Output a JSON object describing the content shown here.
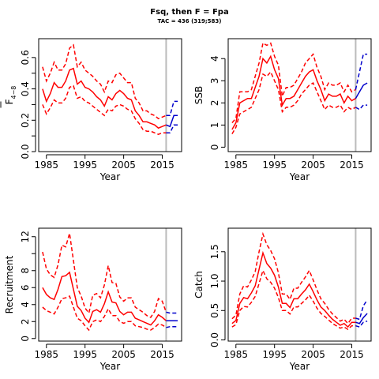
{
  "title": "Fsq, then F = Fpa",
  "subtitle": "TAC = 436 (319;583)",
  "colors": {
    "historical": "#ff0000",
    "projection": "#0000cc",
    "marker": "#bbbbbb"
  },
  "chart_data": [
    {
      "type": "line",
      "ylabel_main": "F",
      "ylabel_sub": "4−8",
      "xlabel": "Year",
      "xlim": [
        1983,
        2020
      ],
      "ylim": [
        0,
        0.72
      ],
      "xticks": [
        1985,
        1995,
        2005,
        2015
      ],
      "yticks": [
        0.0,
        0.1,
        0.2,
        0.3,
        0.4,
        0.5,
        0.6
      ],
      "yticklabels": [
        "0.0",
        "",
        "0.2",
        "",
        "0.4",
        "",
        "0.6"
      ],
      "marker_year": 2016,
      "x": [
        1984,
        1985,
        1986,
        1987,
        1988,
        1989,
        1990,
        1991,
        1992,
        1993,
        1994,
        1995,
        1996,
        1997,
        1998,
        1999,
        2000,
        2001,
        2002,
        2003,
        2004,
        2005,
        2006,
        2007,
        2008,
        2009,
        2010,
        2011,
        2012,
        2013,
        2014,
        2015,
        2016
      ],
      "series": [
        {
          "role": "estimate",
          "values": [
            0.4,
            0.32,
            0.37,
            0.44,
            0.41,
            0.41,
            0.45,
            0.52,
            0.53,
            0.43,
            0.45,
            0.41,
            0.4,
            0.38,
            0.35,
            0.33,
            0.29,
            0.35,
            0.33,
            0.37,
            0.39,
            0.37,
            0.34,
            0.33,
            0.26,
            0.23,
            0.19,
            0.19,
            0.18,
            0.17,
            0.15,
            0.16,
            0.17
          ]
        },
        {
          "role": "upper",
          "values": [
            0.54,
            0.45,
            0.5,
            0.57,
            0.52,
            0.52,
            0.56,
            0.66,
            0.68,
            0.54,
            0.57,
            0.52,
            0.5,
            0.48,
            0.45,
            0.43,
            0.38,
            0.45,
            0.44,
            0.49,
            0.5,
            0.47,
            0.44,
            0.44,
            0.34,
            0.31,
            0.26,
            0.26,
            0.24,
            0.23,
            0.21,
            0.22,
            0.23
          ]
        },
        {
          "role": "lower",
          "values": [
            0.3,
            0.24,
            0.28,
            0.33,
            0.31,
            0.31,
            0.34,
            0.41,
            0.42,
            0.34,
            0.35,
            0.32,
            0.31,
            0.29,
            0.27,
            0.25,
            0.23,
            0.27,
            0.26,
            0.29,
            0.3,
            0.29,
            0.27,
            0.26,
            0.21,
            0.18,
            0.14,
            0.13,
            0.13,
            0.12,
            0.11,
            0.12,
            0.12
          ]
        }
      ],
      "projection": {
        "x": [
          2016,
          2017,
          2018,
          2019
        ],
        "estimate": [
          0.17,
          0.16,
          0.23,
          0.23
        ],
        "upper": [
          0.23,
          0.23,
          0.32,
          0.32
        ],
        "lower": [
          0.12,
          0.12,
          0.17,
          0.17
        ]
      }
    },
    {
      "type": "line",
      "ylabel_main": "SSB",
      "ylabel_sub": "",
      "xlabel": "Year",
      "xlim": [
        1983,
        2020
      ],
      "ylim": [
        -0.2,
        4.9
      ],
      "xticks": [
        1985,
        1995,
        2005,
        2015
      ],
      "yticks": [
        0,
        1,
        2,
        3,
        4
      ],
      "yticklabels": [
        "0",
        "1",
        "2",
        "3",
        "4"
      ],
      "marker_year": 2016,
      "x": [
        1984,
        1985,
        1986,
        1987,
        1988,
        1989,
        1990,
        1991,
        1992,
        1993,
        1994,
        1995,
        1996,
        1997,
        1998,
        1999,
        2000,
        2001,
        2002,
        2003,
        2004,
        2005,
        2006,
        2007,
        2008,
        2009,
        2010,
        2011,
        2012,
        2013,
        2014,
        2015,
        2016
      ],
      "series": [
        {
          "role": "estimate",
          "values": [
            0.8,
            1.1,
            2.0,
            2.1,
            2.2,
            2.2,
            2.7,
            3.2,
            4.0,
            3.8,
            4.1,
            3.5,
            3.1,
            1.9,
            2.2,
            2.2,
            2.3,
            2.6,
            2.9,
            3.2,
            3.4,
            3.5,
            3.0,
            2.6,
            2.1,
            2.4,
            2.3,
            2.3,
            2.4,
            2.0,
            2.3,
            2.1,
            2.2
          ]
        },
        {
          "role": "upper",
          "values": [
            1.1,
            1.3,
            2.5,
            2.5,
            2.5,
            2.6,
            3.2,
            3.8,
            4.7,
            4.6,
            4.7,
            4.1,
            3.7,
            2.3,
            2.7,
            2.7,
            2.8,
            3.1,
            3.4,
            3.8,
            4.0,
            4.2,
            3.6,
            3.2,
            2.6,
            2.9,
            2.8,
            2.8,
            2.9,
            2.5,
            2.8,
            2.5,
            2.6
          ]
        },
        {
          "role": "lower",
          "values": [
            0.6,
            0.9,
            1.5,
            1.6,
            1.7,
            1.8,
            2.2,
            2.6,
            3.3,
            3.2,
            3.4,
            3.0,
            2.6,
            1.6,
            1.8,
            1.8,
            1.9,
            2.1,
            2.4,
            2.6,
            2.8,
            2.9,
            2.5,
            2.1,
            1.7,
            1.9,
            1.8,
            1.8,
            1.9,
            1.6,
            1.8,
            1.7,
            1.8
          ]
        }
      ],
      "projection": {
        "x": [
          2016,
          2017,
          2018,
          2019
        ],
        "estimate": [
          2.2,
          2.5,
          2.8,
          2.9
        ],
        "upper": [
          2.6,
          3.4,
          4.2,
          4.2
        ],
        "lower": [
          1.8,
          1.7,
          1.9,
          1.9
        ]
      }
    },
    {
      "type": "line",
      "ylabel_main": "Recruitment",
      "ylabel_sub": "",
      "xlabel": "Year",
      "xlim": [
        1983,
        2020
      ],
      "ylim": [
        -0.3,
        13.0
      ],
      "xticks": [
        1985,
        1995,
        2005,
        2015
      ],
      "yticks": [
        0,
        2,
        4,
        6,
        8,
        10,
        12
      ],
      "yticklabels": [
        "0",
        "2",
        "4",
        "6",
        "8",
        "",
        "12"
      ],
      "marker_year": 2016,
      "x": [
        1984,
        1985,
        1986,
        1987,
        1988,
        1989,
        1990,
        1991,
        1992,
        1993,
        1994,
        1995,
        1996,
        1997,
        1998,
        1999,
        2000,
        2001,
        2002,
        2003,
        2004,
        2005,
        2006,
        2007,
        2008,
        2009,
        2010,
        2011,
        2012,
        2013,
        2014,
        2015,
        2016
      ],
      "series": [
        {
          "role": "estimate",
          "values": [
            6.0,
            5.2,
            4.8,
            4.6,
            5.8,
            7.3,
            7.4,
            7.8,
            5.8,
            3.8,
            3.3,
            2.4,
            1.9,
            3.2,
            3.4,
            3.1,
            4.1,
            5.5,
            4.3,
            4.2,
            3.2,
            2.8,
            3.1,
            3.1,
            2.4,
            2.2,
            2.0,
            1.8,
            1.6,
            2.1,
            2.8,
            2.5,
            2.1
          ]
        },
        {
          "role": "upper",
          "values": [
            10.2,
            8.2,
            7.5,
            7.2,
            8.7,
            11.0,
            10.8,
            12.4,
            9.2,
            6.0,
            5.0,
            3.6,
            3.0,
            5.1,
            5.3,
            4.8,
            6.3,
            8.6,
            6.6,
            6.5,
            4.9,
            4.4,
            4.8,
            4.8,
            3.7,
            3.4,
            3.1,
            2.7,
            2.5,
            3.2,
            4.7,
            4.4,
            3.1
          ]
        },
        {
          "role": "lower",
          "values": [
            3.7,
            3.3,
            3.1,
            2.9,
            3.7,
            4.7,
            4.8,
            5.0,
            3.7,
            2.4,
            2.1,
            1.5,
            1.0,
            2.0,
            2.2,
            2.0,
            2.6,
            3.5,
            2.7,
            2.7,
            2.0,
            1.8,
            2.0,
            2.0,
            1.5,
            1.4,
            1.3,
            1.1,
            1.0,
            1.3,
            1.7,
            1.6,
            1.3
          ]
        }
      ],
      "projection": {
        "x": [
          2016,
          2017,
          2018,
          2019
        ],
        "estimate": [
          2.1,
          2.1,
          2.1,
          2.1
        ],
        "upper": [
          3.1,
          3.0,
          3.0,
          3.0
        ],
        "lower": [
          1.3,
          1.4,
          1.4,
          1.4
        ]
      }
    },
    {
      "type": "line",
      "ylabel_main": "Catch",
      "ylabel_sub": "",
      "xlabel": "Year",
      "xlim": [
        1983,
        2020
      ],
      "ylim": [
        -0.02,
        1.9
      ],
      "xticks": [
        1985,
        1995,
        2005,
        2015
      ],
      "yticks": [
        0.0,
        0.5,
        1.0,
        1.5
      ],
      "yticklabels": [
        "0.0",
        "0.5",
        "1.0",
        "1.5"
      ],
      "marker_year": 2016,
      "x": [
        1984,
        1985,
        1986,
        1987,
        1988,
        1989,
        1990,
        1991,
        1992,
        1993,
        1994,
        1995,
        1996,
        1997,
        1998,
        1999,
        2000,
        2001,
        2002,
        2003,
        2004,
        2005,
        2006,
        2007,
        2008,
        2009,
        2010,
        2011,
        2012,
        2013,
        2014,
        2015,
        2016
      ],
      "series": [
        {
          "role": "estimate",
          "values": [
            0.28,
            0.33,
            0.62,
            0.72,
            0.7,
            0.8,
            0.92,
            1.2,
            1.48,
            1.3,
            1.22,
            1.1,
            0.9,
            0.62,
            0.62,
            0.55,
            0.7,
            0.7,
            0.78,
            0.85,
            0.95,
            0.82,
            0.68,
            0.56,
            0.5,
            0.42,
            0.35,
            0.3,
            0.25,
            0.28,
            0.22,
            0.3,
            0.3
          ]
        },
        {
          "role": "upper",
          "values": [
            0.36,
            0.42,
            0.78,
            0.92,
            0.9,
            1.02,
            1.16,
            1.5,
            1.8,
            1.62,
            1.52,
            1.38,
            1.14,
            0.78,
            0.78,
            0.69,
            0.88,
            0.88,
            0.98,
            1.07,
            1.18,
            1.02,
            0.85,
            0.7,
            0.62,
            0.52,
            0.44,
            0.38,
            0.32,
            0.35,
            0.28,
            0.37,
            0.37
          ]
        },
        {
          "role": "lower",
          "values": [
            0.22,
            0.26,
            0.5,
            0.57,
            0.56,
            0.64,
            0.74,
            0.96,
            1.18,
            1.04,
            0.98,
            0.88,
            0.72,
            0.5,
            0.5,
            0.44,
            0.56,
            0.56,
            0.62,
            0.68,
            0.76,
            0.66,
            0.54,
            0.45,
            0.4,
            0.34,
            0.28,
            0.24,
            0.2,
            0.22,
            0.18,
            0.24,
            0.24
          ]
        }
      ],
      "projection": {
        "x": [
          2016,
          2017,
          2018,
          2019
        ],
        "estimate": [
          0.3,
          0.28,
          0.38,
          0.45
        ],
        "upper": [
          0.37,
          0.35,
          0.58,
          0.68
        ],
        "lower": [
          0.24,
          0.22,
          0.3,
          0.32
        ]
      }
    }
  ]
}
